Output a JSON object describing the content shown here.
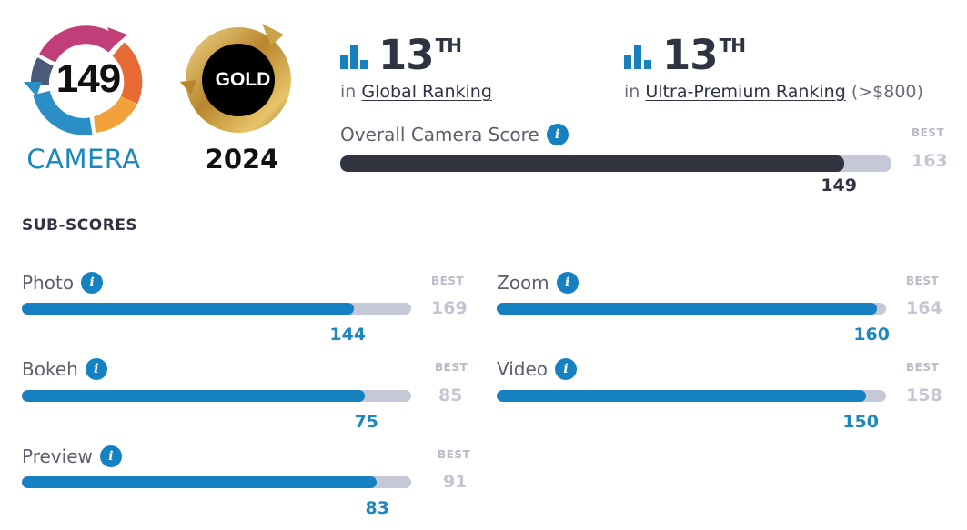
{
  "badges": {
    "camera_score": "149",
    "camera_label": "CAMERA",
    "gold_label": "GOLD",
    "gold_year": "2024"
  },
  "rankings": [
    {
      "number": "13",
      "suffix": "TH",
      "prefix": "in",
      "link": "Global Ranking",
      "extra": ""
    },
    {
      "number": "13",
      "suffix": "TH",
      "prefix": "in",
      "link": "Ultra-Premium Ranking",
      "extra": "(>$800)"
    }
  ],
  "overall": {
    "label": "Overall Camera Score",
    "best_label": "BEST",
    "best": "163",
    "score": "149",
    "fraction": 0.914
  },
  "sub_scores_title": "SUB-SCORES",
  "sub_scores": [
    {
      "label": "Photo",
      "score": "144",
      "best_label": "BEST",
      "best": "169",
      "fraction": 0.852
    },
    {
      "label": "Zoom",
      "score": "160",
      "best_label": "BEST",
      "best": "164",
      "fraction": 0.976
    },
    {
      "label": "Bokeh",
      "score": "75",
      "best_label": "BEST",
      "best": "85",
      "fraction": 0.882
    },
    {
      "label": "Video",
      "score": "150",
      "best_label": "BEST",
      "best": "158",
      "fraction": 0.949
    },
    {
      "label": "Preview",
      "score": "83",
      "best_label": "BEST",
      "best": "91",
      "fraction": 0.912
    }
  ],
  "colors": {
    "accent": "#1581c0",
    "dark_bar": "#31343f",
    "track": "#c5c8d6",
    "badge_pink": "#c23e78",
    "badge_orange": "#f2a23a",
    "badge_blue": "#2b8ec5",
    "gold": "#c9a24a"
  },
  "icons": {
    "rank": "bar-chart-icon",
    "info": "info-icon"
  }
}
